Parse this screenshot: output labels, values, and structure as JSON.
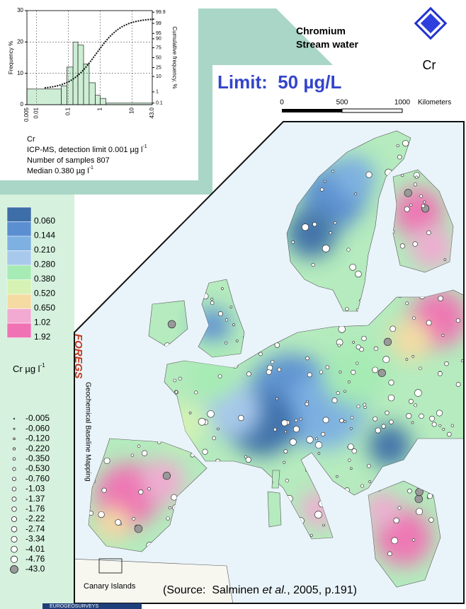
{
  "histogram": {
    "ylabel": "Frequency %",
    "y2label": "Cumulative frequency, %",
    "ylim": [
      0,
      30
    ],
    "yticks": [
      0,
      10,
      20,
      30
    ],
    "xlim": [
      0.005,
      43
    ],
    "xticks": [
      0.005,
      0.01,
      0.1,
      1,
      10,
      {
        "value": 43,
        "label": "43.0"
      }
    ],
    "y2ticks": [
      99.9,
      99,
      95,
      90,
      75,
      50,
      25,
      10,
      1,
      0.1
    ],
    "bins": [
      0.005,
      0.06,
      0.09,
      0.14,
      0.2,
      0.3,
      0.45,
      0.7,
      1,
      1.5,
      43
    ],
    "counts": [
      5,
      6,
      12,
      20,
      19,
      13,
      7,
      3,
      2,
      0.5
    ]
  },
  "info": {
    "element": "Cr",
    "method": "ICP-MS, detection limit 0.001 µg l",
    "samples": "Number of samples 807",
    "median": "Median 0.380 µg l",
    "unit_exp": "-1"
  },
  "header": {
    "element": "Chromium",
    "medium": "Stream water",
    "symbol": "Cr",
    "limit": "Limit:  50 µg/L"
  },
  "scale": {
    "labels": [
      "0",
      "500",
      "1000"
    ],
    "unit": "Kilometers"
  },
  "legend": {
    "classes": [
      {
        "label": "0.060",
        "color": "#3d6ea8"
      },
      {
        "label": "0.144",
        "color": "#5b8fd2"
      },
      {
        "label": "0.210",
        "color": "#7eb0e2"
      },
      {
        "label": "0.280",
        "color": "#a9c9ec"
      },
      {
        "label": "0.380",
        "color": "#a6ebb4"
      },
      {
        "label": "0.520",
        "color": "#d6f2b4"
      },
      {
        "label": "0.650",
        "color": "#f5dba2"
      },
      {
        "label": "1.02",
        "color": "#f2a9d2"
      },
      {
        "label": "1.92",
        "color": "#f172b4"
      }
    ],
    "unit": "Cr µg l",
    "unit_exp": "-1",
    "symbols": [
      "-0.005",
      "-0.060",
      "-0.120",
      "-0.220",
      "-0.350",
      "-0.530",
      "-0.760",
      "-1.03",
      "-1.37",
      "-1.76",
      "-2.22",
      "-2.74",
      "-3.34",
      "-4.01",
      "-4.76",
      "-43.0"
    ]
  },
  "branding": {
    "foregs": "FOREGS",
    "subtitle": "Geochemical Baseline Mapping",
    "footer": "EUROGEOSURVEYS"
  },
  "map": {
    "inset": "Canary Islands"
  },
  "source": {
    "pre": "(Source:  Salminen ",
    "italic": "et al.",
    "post": ", 2005, p.191)"
  }
}
